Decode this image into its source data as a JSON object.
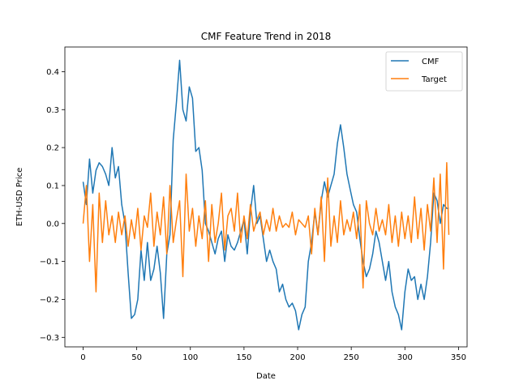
{
  "chart_data": {
    "type": "line",
    "title": "CMF Feature Trend in 2018",
    "xlabel": "Date",
    "ylabel": "ETH-USD Price",
    "xlim": [
      -17,
      358
    ],
    "ylim": [
      -0.325,
      0.465
    ],
    "xticks": [
      0,
      50,
      100,
      150,
      200,
      250,
      300,
      350
    ],
    "yticks": [
      -0.3,
      -0.2,
      -0.1,
      0.0,
      0.1,
      0.2,
      0.3,
      0.4
    ],
    "ytick_labels": [
      "−0.3",
      "−0.2",
      "−0.1",
      "0.0",
      "0.1",
      "0.2",
      "0.3",
      "0.4"
    ],
    "grid": false,
    "legend": {
      "position": "top-right"
    },
    "series": [
      {
        "name": "CMF",
        "color": "#1f77b4",
        "x": [
          0,
          3,
          6,
          9,
          12,
          15,
          18,
          21,
          24,
          27,
          30,
          33,
          36,
          39,
          42,
          45,
          48,
          51,
          54,
          57,
          60,
          63,
          66,
          69,
          72,
          75,
          78,
          81,
          84,
          87,
          90,
          93,
          96,
          99,
          102,
          105,
          108,
          111,
          114,
          117,
          120,
          123,
          126,
          129,
          132,
          135,
          138,
          141,
          144,
          147,
          150,
          153,
          156,
          159,
          162,
          165,
          168,
          171,
          174,
          177,
          180,
          183,
          186,
          189,
          192,
          195,
          198,
          201,
          204,
          207,
          210,
          213,
          216,
          219,
          222,
          225,
          228,
          231,
          234,
          237,
          240,
          243,
          246,
          249,
          252,
          255,
          258,
          261,
          264,
          267,
          270,
          273,
          276,
          279,
          282,
          285,
          288,
          291,
          294,
          297,
          300,
          303,
          306,
          309,
          312,
          315,
          318,
          321,
          324,
          327,
          330,
          333,
          336,
          339,
          341
        ],
        "values": [
          0.11,
          0.05,
          0.17,
          0.08,
          0.14,
          0.16,
          0.15,
          0.13,
          0.1,
          0.2,
          0.12,
          0.15,
          0.05,
          0.0,
          -0.13,
          -0.25,
          -0.24,
          -0.2,
          -0.07,
          -0.15,
          -0.05,
          -0.15,
          -0.12,
          -0.06,
          -0.13,
          -0.25,
          -0.08,
          -0.03,
          0.22,
          0.32,
          0.43,
          0.3,
          0.27,
          0.36,
          0.33,
          0.19,
          0.2,
          0.14,
          0.0,
          -0.02,
          -0.05,
          -0.08,
          -0.04,
          -0.02,
          -0.1,
          -0.03,
          -0.06,
          -0.07,
          -0.05,
          -0.02,
          0.01,
          -0.08,
          0.03,
          0.1,
          0.0,
          0.02,
          -0.04,
          -0.1,
          -0.07,
          -0.1,
          -0.12,
          -0.18,
          -0.16,
          -0.2,
          -0.22,
          -0.21,
          -0.23,
          -0.28,
          -0.24,
          -0.22,
          -0.1,
          -0.05,
          0.03,
          -0.03,
          0.06,
          0.11,
          0.07,
          0.1,
          0.13,
          0.21,
          0.26,
          0.2,
          0.13,
          0.09,
          0.05,
          0.03,
          -0.04,
          -0.1,
          -0.14,
          -0.12,
          -0.08,
          -0.02,
          -0.05,
          -0.1,
          -0.15,
          -0.1,
          -0.18,
          -0.22,
          -0.24,
          -0.28,
          -0.18,
          -0.12,
          -0.15,
          -0.14,
          -0.2,
          -0.16,
          -0.2,
          -0.14,
          -0.05,
          0.08,
          0.06,
          0.0,
          0.05,
          0.04,
          0.04
        ]
      },
      {
        "name": "Target",
        "color": "#ff7f0e",
        "x": [
          0,
          3,
          6,
          9,
          12,
          15,
          18,
          21,
          24,
          27,
          30,
          33,
          36,
          39,
          42,
          45,
          48,
          51,
          54,
          57,
          60,
          63,
          66,
          69,
          72,
          75,
          78,
          81,
          84,
          87,
          90,
          93,
          96,
          99,
          102,
          105,
          108,
          111,
          114,
          117,
          120,
          123,
          126,
          129,
          132,
          135,
          138,
          141,
          144,
          147,
          150,
          153,
          156,
          159,
          162,
          165,
          168,
          171,
          174,
          177,
          180,
          183,
          186,
          189,
          192,
          195,
          198,
          201,
          204,
          207,
          210,
          213,
          216,
          219,
          222,
          225,
          228,
          231,
          234,
          237,
          240,
          243,
          246,
          249,
          252,
          255,
          258,
          261,
          264,
          267,
          270,
          273,
          276,
          279,
          282,
          285,
          288,
          291,
          294,
          297,
          300,
          303,
          306,
          309,
          312,
          315,
          318,
          321,
          324,
          327,
          330,
          333,
          336,
          339,
          341
        ],
        "values": [
          0.0,
          0.1,
          -0.1,
          0.05,
          -0.18,
          0.08,
          -0.05,
          0.06,
          -0.03,
          0.02,
          -0.05,
          0.03,
          -0.03,
          0.02,
          -0.06,
          0.01,
          -0.04,
          0.04,
          -0.07,
          0.02,
          -0.01,
          0.08,
          -0.06,
          0.03,
          -0.03,
          0.07,
          -0.08,
          0.1,
          -0.05,
          0.01,
          0.06,
          -0.14,
          0.13,
          -0.02,
          0.04,
          -0.06,
          0.02,
          -0.04,
          0.06,
          -0.1,
          0.05,
          -0.05,
          0.0,
          0.08,
          -0.07,
          0.02,
          0.04,
          -0.02,
          0.08,
          -0.05,
          0.02,
          -0.04,
          0.05,
          -0.02,
          0.01,
          0.03,
          -0.03,
          0.01,
          -0.02,
          0.04,
          -0.02,
          0.02,
          -0.01,
          0.0,
          -0.01,
          0.03,
          -0.03,
          0.01,
          0.0,
          -0.01,
          0.02,
          -0.08,
          0.04,
          -0.03,
          0.07,
          -0.1,
          0.12,
          -0.06,
          0.02,
          -0.05,
          0.06,
          -0.03,
          0.01,
          -0.02,
          0.03,
          -0.04,
          0.05,
          -0.17,
          0.06,
          0.0,
          -0.03,
          0.04,
          -0.02,
          0.01,
          -0.03,
          0.05,
          -0.05,
          0.02,
          -0.06,
          0.03,
          -0.04,
          0.02,
          -0.05,
          0.07,
          -0.04,
          0.04,
          -0.07,
          0.05,
          -0.02,
          0.12,
          -0.05,
          0.13,
          -0.12,
          0.16,
          -0.03
        ]
      }
    ]
  }
}
